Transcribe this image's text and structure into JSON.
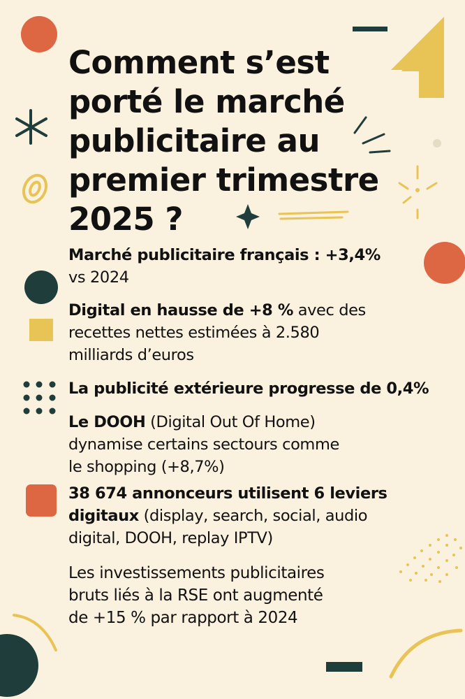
{
  "title_lines": [
    "Comment s’est",
    "porté le marché",
    "publicitaire au",
    "premier trimestre",
    "2025 ?"
  ],
  "items": [
    {
      "lines": [
        [
          {
            "b": "Marché publicitaire français : +3,4%"
          }
        ],
        [
          {
            "t": "vs 2024"
          }
        ]
      ]
    },
    {
      "lines": [
        [
          {
            "b": "Digital en hausse de +8 %"
          },
          {
            "t": " avec des"
          }
        ],
        [
          {
            "t": "recettes nettes estimées à 2.580"
          }
        ],
        [
          {
            "t": "milliards d’euros"
          }
        ]
      ]
    },
    {
      "lines": [
        [
          {
            "b": "La publicité extérieure progresse de 0,4%"
          }
        ]
      ]
    },
    {
      "lines": [
        [
          {
            "b": "Le DOOH"
          },
          {
            "t": " (Digital Out Of Home)"
          }
        ],
        [
          {
            "t": "dynamise certains sectours comme"
          }
        ],
        [
          {
            "t": "le shopping (+8,7%)"
          }
        ]
      ]
    },
    {
      "lines": [
        [
          {
            "b": "38 674 annonceurs utilisent 6 leviers"
          }
        ],
        [
          {
            "b": "digitaux"
          },
          {
            "t": " (display, search, social, audio"
          }
        ],
        [
          {
            "t": "digital, DOOH, replay IPTV)"
          }
        ]
      ]
    },
    {
      "lines": [
        [
          {
            "t": "Les investissements publicitaires"
          }
        ],
        [
          {
            "t": "bruts liés à la RSE ont augmenté"
          }
        ],
        [
          {
            "t": "de +15 % par rapport à 2024"
          }
        ]
      ]
    }
  ],
  "colors": {
    "background": "#fbf1df",
    "orange": "#dd6643",
    "teal": "#1e3d3b",
    "yellow": "#e8c355",
    "text": "#111111"
  }
}
